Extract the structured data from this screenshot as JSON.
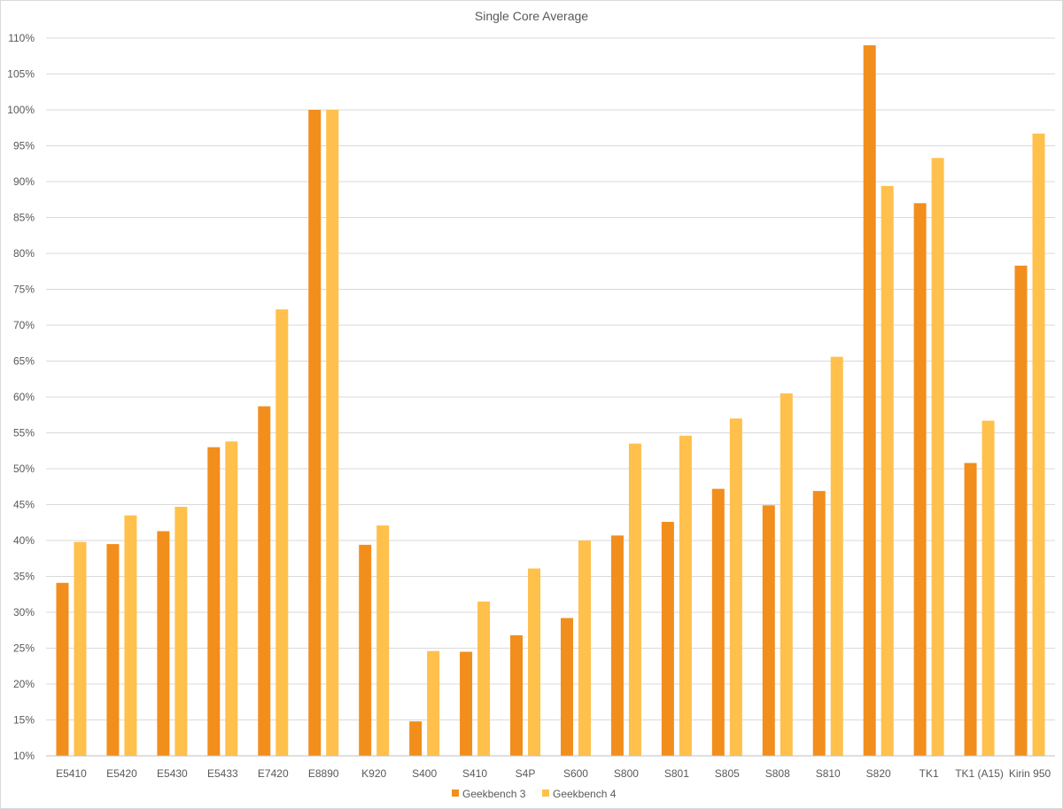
{
  "chart_data": {
    "type": "bar",
    "title": "Single Core Average",
    "xlabel": "",
    "ylabel": "",
    "y_unit": "%",
    "ylim": [
      10,
      110
    ],
    "y_ticks": [
      10,
      15,
      20,
      25,
      30,
      35,
      40,
      45,
      50,
      55,
      60,
      65,
      70,
      75,
      80,
      85,
      90,
      95,
      100,
      105,
      110
    ],
    "grid": true,
    "legend_position": "bottom",
    "categories": [
      "E5410",
      "E5420",
      "E5430",
      "E5433",
      "E7420",
      "E8890",
      "K920",
      "S400",
      "S410",
      "S4P",
      "S600",
      "S800",
      "S801",
      "S805",
      "S808",
      "S810",
      "S820",
      "TK1",
      "TK1 (A15)",
      "Kirin 950"
    ],
    "series": [
      {
        "name": "Geekbench 3",
        "color": "#f28e1c",
        "values": [
          34.1,
          39.5,
          41.3,
          53.0,
          58.7,
          100.0,
          39.4,
          14.8,
          24.5,
          26.8,
          29.2,
          40.7,
          42.6,
          47.2,
          44.9,
          46.9,
          109.0,
          87.0,
          50.8,
          78.3
        ]
      },
      {
        "name": "Geekbench 4",
        "color": "#ffc04c",
        "values": [
          39.8,
          43.5,
          44.7,
          53.8,
          72.2,
          100.0,
          42.1,
          24.6,
          31.5,
          36.1,
          40.0,
          53.5,
          54.6,
          57.0,
          60.5,
          65.6,
          89.4,
          93.3,
          56.7,
          96.7
        ]
      }
    ]
  }
}
